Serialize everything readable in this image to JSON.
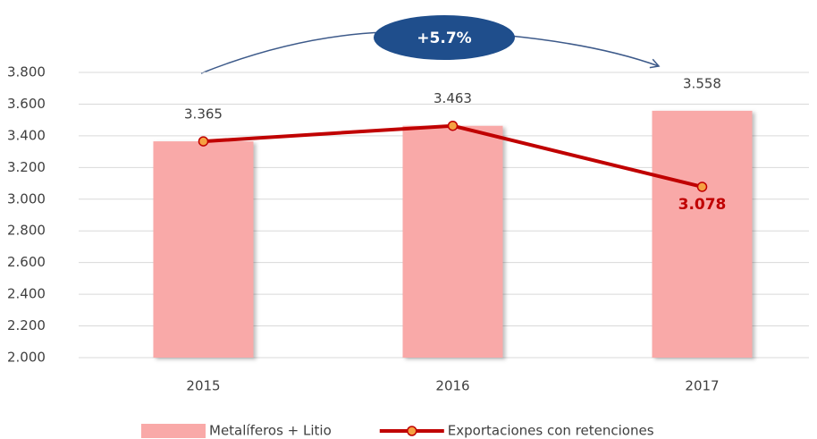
{
  "chart_data": {
    "type": "bar",
    "categories": [
      "2015",
      "2016",
      "2017"
    ],
    "series": [
      {
        "name": "Metalíferos + Litio",
        "type": "bar",
        "color": "#f9a9a8",
        "values": [
          3365,
          3463,
          3558
        ],
        "value_labels": [
          "3.365",
          "3.463",
          "3.558"
        ]
      },
      {
        "name": "Exportaciones con retenciones",
        "type": "line",
        "color": "#c00000",
        "marker_color": "#f5a142",
        "values": [
          3365,
          3463,
          3078
        ],
        "value_labels": [
          null,
          null,
          "3.078"
        ]
      }
    ],
    "annotation": "+5.7%",
    "ylim": [
      2000,
      3800
    ],
    "yticks": [
      {
        "value": 2000,
        "label": "2.000"
      },
      {
        "value": 2200,
        "label": "2.200"
      },
      {
        "value": 2400,
        "label": "2.400"
      },
      {
        "value": 2600,
        "label": "2.600"
      },
      {
        "value": 2800,
        "label": "2.800"
      },
      {
        "value": 3000,
        "label": "3.000"
      },
      {
        "value": 3200,
        "label": "3.200"
      },
      {
        "value": 3400,
        "label": "3.400"
      },
      {
        "value": 3600,
        "label": "3.600"
      },
      {
        "value": 3800,
        "label": "3.800"
      }
    ],
    "grid": true,
    "legend": "bottom"
  }
}
